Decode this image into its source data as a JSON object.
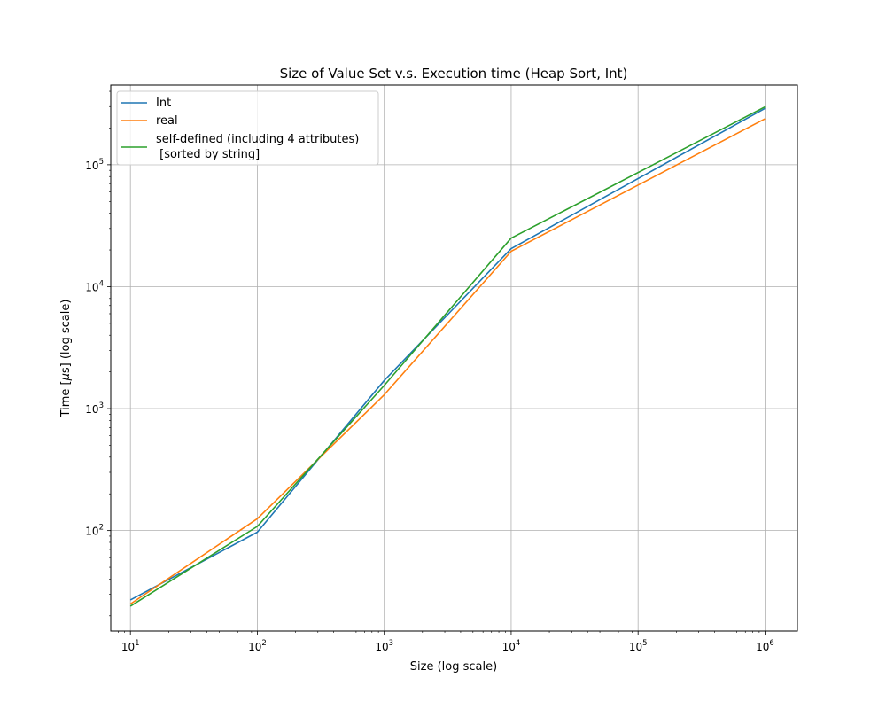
{
  "chart_data": {
    "type": "line",
    "title": "Size of Value Set v.s. Execution time (Heap Sort, Int)",
    "xlabel": "Size (log scale)",
    "ylabel_prefix": "Time [",
    "ylabel_mu": "μ",
    "ylabel_suffix": "s] (log scale)",
    "xscale": "log",
    "yscale": "log",
    "xlim": [
      7,
      1800000
    ],
    "ylim": [
      15,
      450000
    ],
    "grid": true,
    "legend_position": "top-left",
    "x": [
      10,
      100,
      1000,
      10000,
      1000000
    ],
    "x_tick_labels": [
      {
        "base": "10",
        "exp": "1"
      },
      {
        "base": "10",
        "exp": "2"
      },
      {
        "base": "10",
        "exp": "3"
      },
      {
        "base": "10",
        "exp": "4"
      },
      {
        "base": "10",
        "exp": "5"
      },
      {
        "base": "10",
        "exp": "6"
      }
    ],
    "y_tick_labels": [
      {
        "base": "10",
        "exp": "2"
      },
      {
        "base": "10",
        "exp": "3"
      },
      {
        "base": "10",
        "exp": "4"
      },
      {
        "base": "10",
        "exp": "5"
      }
    ],
    "series": [
      {
        "name": "Int",
        "color": "#1f77b4",
        "values": [
          27,
          97,
          1700,
          20500,
          290000
        ]
      },
      {
        "name": "real",
        "color": "#ff7f0e",
        "values": [
          25,
          125,
          1300,
          19500,
          238000
        ]
      },
      {
        "name_lines": [
          "self-defined (including 4 attributes)",
          " [sorted by string]"
        ],
        "color": "#2ca02c",
        "values": [
          24,
          108,
          1550,
          25000,
          298000
        ]
      }
    ]
  }
}
